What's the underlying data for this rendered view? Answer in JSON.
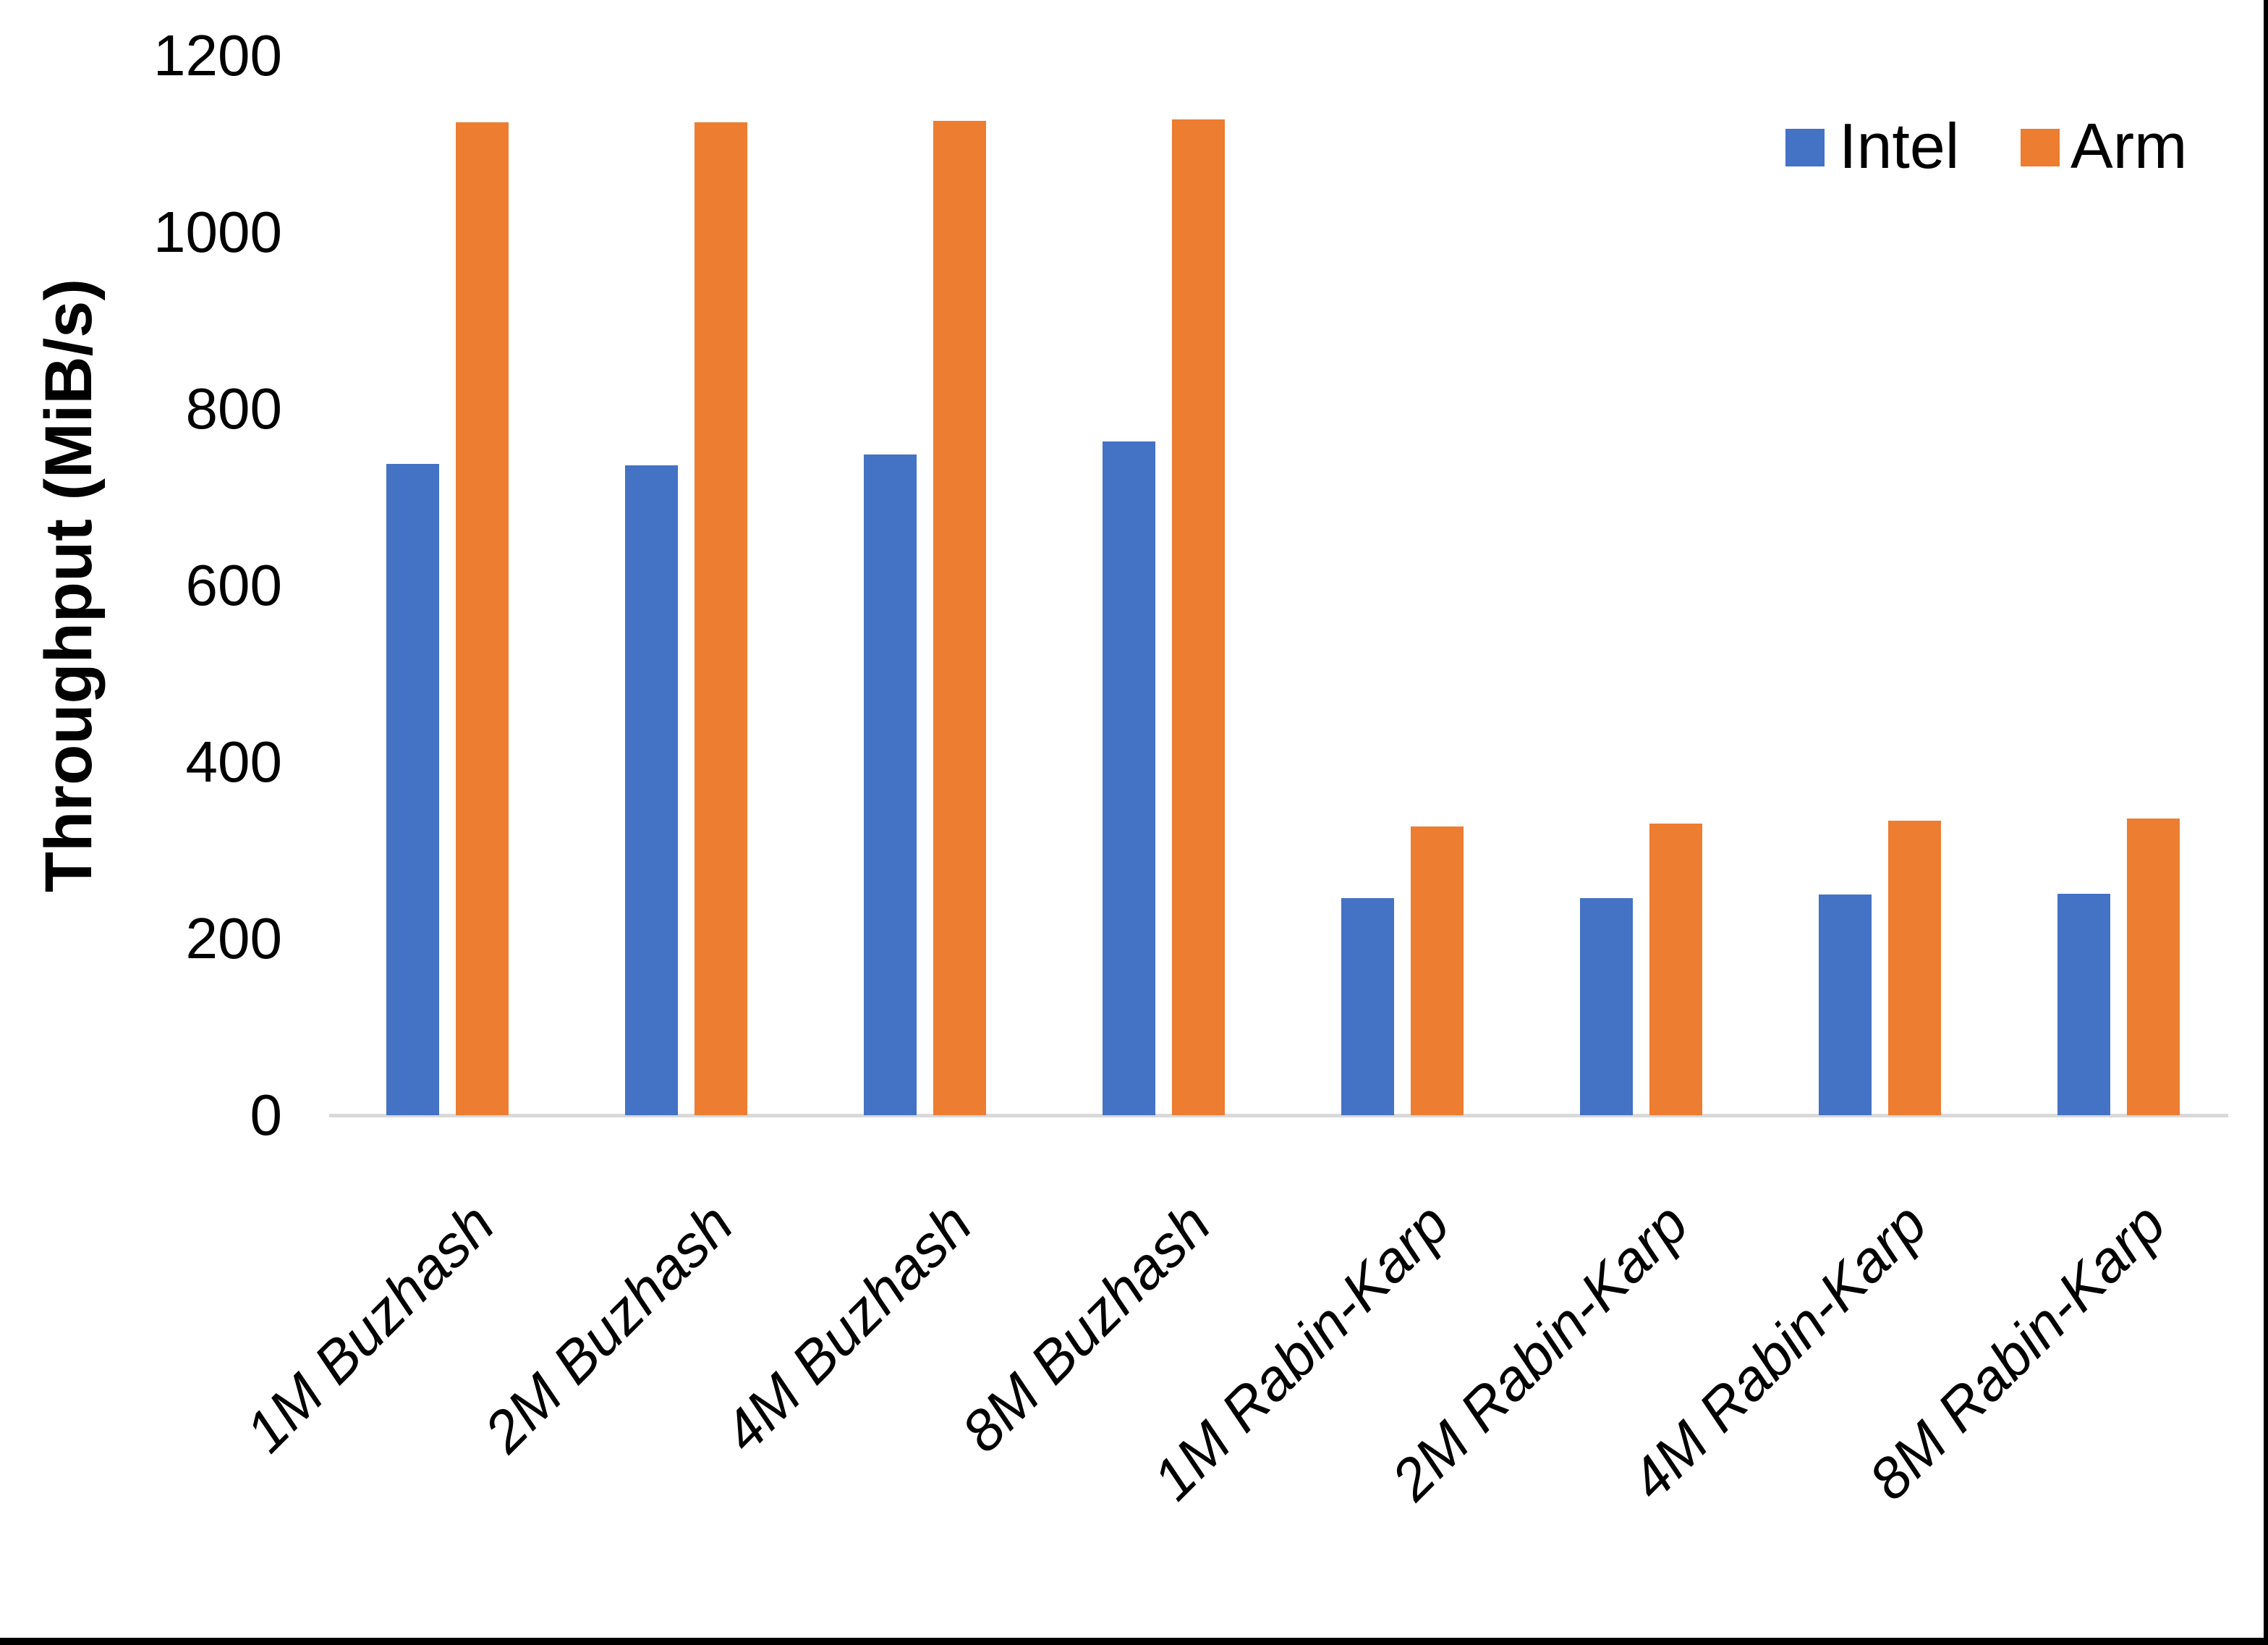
{
  "chart_data": {
    "type": "bar",
    "title": "",
    "xlabel": "",
    "ylabel": "Throughput (MiB/s)",
    "categories": [
      "1M Buzhash",
      "2M Buzhash",
      "4M Buzhash",
      "8M Buzhash",
      "1M Rabin-Karp",
      "2M Rabin-Karp",
      "4M Rabin-Karp",
      "8M Rabin-Karp"
    ],
    "series": [
      {
        "name": "Intel",
        "color": "#4472C4",
        "values": [
          738,
          736,
          748,
          763,
          246,
          246,
          250,
          251
        ]
      },
      {
        "name": "Arm",
        "color": "#ED7D31",
        "values": [
          1125,
          1125,
          1126,
          1128,
          327,
          330,
          334,
          336
        ]
      }
    ],
    "ylim": [
      0,
      1200
    ],
    "yticks": [
      0,
      200,
      400,
      600,
      800,
      1000,
      1200
    ],
    "grid": false,
    "legend_position": "top-right",
    "axis_line_color": "#D9D9D9",
    "text_color": "#000000"
  }
}
